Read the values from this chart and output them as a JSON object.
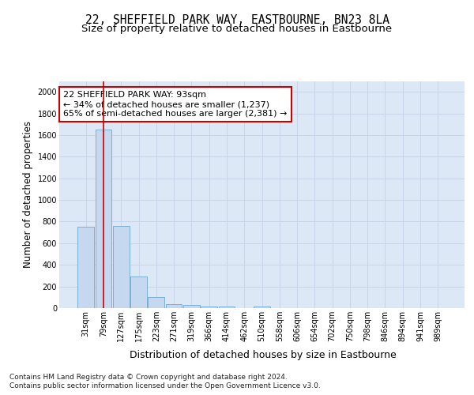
{
  "title": "22, SHEFFIELD PARK WAY, EASTBOURNE, BN23 8LA",
  "subtitle": "Size of property relative to detached houses in Eastbourne",
  "xlabel": "Distribution of detached houses by size in Eastbourne",
  "ylabel": "Number of detached properties",
  "footer_line1": "Contains HM Land Registry data © Crown copyright and database right 2024.",
  "footer_line2": "Contains public sector information licensed under the Open Government Licence v3.0.",
  "bar_labels": [
    "31sqm",
    "79sqm",
    "127sqm",
    "175sqm",
    "223sqm",
    "271sqm",
    "319sqm",
    "366sqm",
    "414sqm",
    "462sqm",
    "510sqm",
    "558sqm",
    "606sqm",
    "654sqm",
    "702sqm",
    "750sqm",
    "798sqm",
    "846sqm",
    "894sqm",
    "941sqm",
    "989sqm"
  ],
  "bar_values": [
    750,
    1650,
    760,
    290,
    105,
    38,
    28,
    18,
    18,
    0,
    18,
    0,
    0,
    0,
    0,
    0,
    0,
    0,
    0,
    0,
    0
  ],
  "bar_color": "#c5d8ef",
  "bar_edgecolor": "#7aafd4",
  "bar_linewidth": 0.7,
  "vline_x": 1.0,
  "vline_color": "#cc0000",
  "vline_linewidth": 1.2,
  "annotation_line1": "22 SHEFFIELD PARK WAY: 93sqm",
  "annotation_line2": "← 34% of detached houses are smaller (1,237)",
  "annotation_line3": "65% of semi-detached houses are larger (2,381) →",
  "annotation_box_facecolor": "#ffffff",
  "annotation_box_edgecolor": "#cc0000",
  "ylim": [
    0,
    2100
  ],
  "yticks": [
    0,
    200,
    400,
    600,
    800,
    1000,
    1200,
    1400,
    1600,
    1800,
    2000
  ],
  "grid_color": "#c8d4e8",
  "bg_color": "#dce8f5",
  "title_fontsize": 10.5,
  "subtitle_fontsize": 9.5,
  "axis_label_fontsize": 9,
  "tick_fontsize": 7,
  "ylabel_fontsize": 8.5,
  "footer_fontsize": 6.5,
  "annotation_fontsize": 8
}
